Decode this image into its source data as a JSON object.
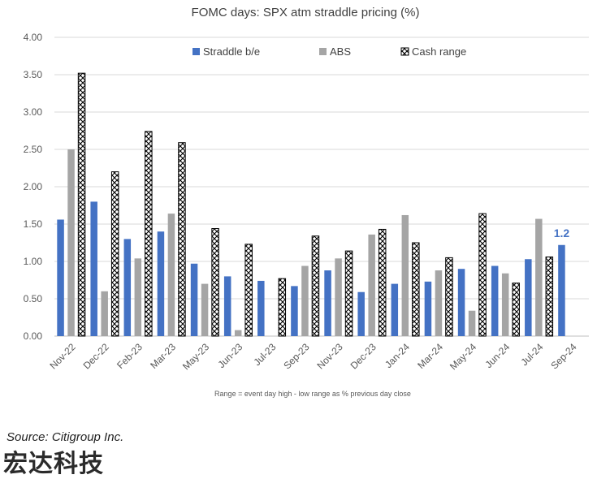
{
  "chart_data": {
    "type": "bar",
    "title": "FOMC days: SPX atm straddle pricing (%)",
    "footnote": "Range = event day high - low range as % previous day close",
    "categories": [
      "Nov-22",
      "Dec-22",
      "Feb-23",
      "Mar-23",
      "May-23",
      "Jun-23",
      "Jul-23",
      "Sep-23",
      "Nov-23",
      "Dec-23",
      "Jan-24",
      "Mar-24",
      "May-24",
      "Jun-24",
      "Jul-24",
      "Sep-24"
    ],
    "ylim": [
      0,
      4.0
    ],
    "yticks": [
      "0.00",
      "0.50",
      "1.00",
      "1.50",
      "2.00",
      "2.50",
      "3.00",
      "3.50",
      "4.00"
    ],
    "grid": true,
    "legend_position": "top",
    "series": [
      {
        "name": "Straddle b/e",
        "color": "#4472C4",
        "pattern": "solid",
        "values": [
          1.56,
          1.8,
          1.3,
          1.4,
          0.97,
          0.8,
          0.74,
          0.67,
          0.88,
          0.59,
          0.7,
          0.73,
          0.9,
          0.94,
          1.03,
          1.22
        ]
      },
      {
        "name": "ABS",
        "color": "#A5A5A5",
        "pattern": "solid",
        "values": [
          2.5,
          0.6,
          1.04,
          1.64,
          0.7,
          0.08,
          null,
          0.94,
          1.04,
          1.36,
          1.62,
          0.88,
          0.34,
          0.84,
          1.57,
          null
        ]
      },
      {
        "name": "Cash range",
        "color": "#000000",
        "pattern": "crosshatch",
        "values": [
          3.52,
          2.2,
          2.74,
          2.59,
          1.44,
          1.23,
          0.77,
          1.34,
          1.14,
          1.43,
          1.25,
          1.05,
          1.64,
          0.71,
          1.06,
          null
        ]
      }
    ],
    "annotations": [
      {
        "text": "1.2",
        "category": "Sep-24",
        "series": "Straddle b/e",
        "color": "#4472C4"
      }
    ]
  },
  "source_text": "Source: Citigroup Inc.",
  "watermark_text": "宏达科技"
}
